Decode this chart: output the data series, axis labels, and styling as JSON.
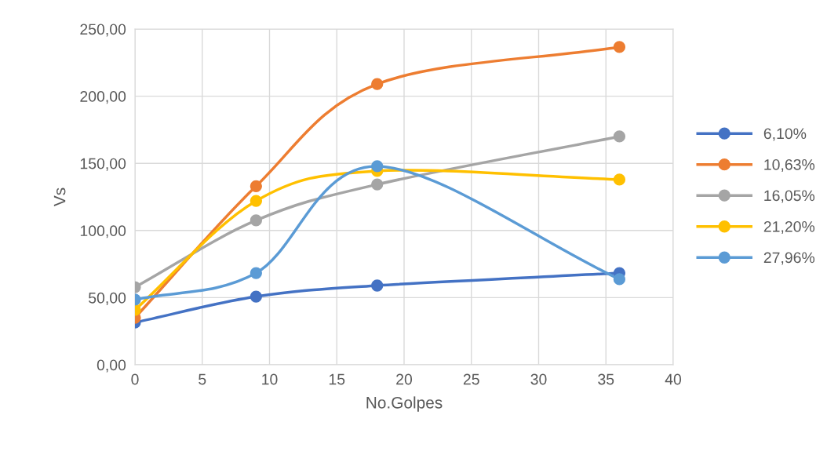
{
  "chart_data": {
    "type": "line",
    "xlabel": "No.Golpes",
    "ylabel": "Vs",
    "x": [
      0,
      9,
      18,
      36
    ],
    "series": [
      {
        "name": "6,10%",
        "color": "#4472c4",
        "values": [
          31.5,
          50.8,
          59,
          68.3
        ]
      },
      {
        "name": "10,63%",
        "color": "#ed7d31",
        "values": [
          35,
          133,
          209,
          236.6
        ]
      },
      {
        "name": "16,05%",
        "color": "#a5a5a5",
        "values": [
          57.8,
          107.5,
          134.3,
          170
        ]
      },
      {
        "name": "21,20%",
        "color": "#ffc000",
        "values": [
          40.9,
          122,
          144.3,
          137.9
        ]
      },
      {
        "name": "27,96%",
        "color": "#5b9bd5",
        "values": [
          48.5,
          68.3,
          147.8,
          63.7
        ]
      }
    ],
    "xlim": [
      0,
      40
    ],
    "xticks": [
      0,
      5,
      10,
      15,
      20,
      25,
      30,
      35,
      40
    ],
    "ylim": [
      0,
      250
    ],
    "yticks": [
      {
        "value": 0,
        "label": "0,00"
      },
      {
        "value": 50,
        "label": "50,00"
      },
      {
        "value": 100,
        "label": "100,00"
      },
      {
        "value": 150,
        "label": "150,00"
      },
      {
        "value": 200,
        "label": "200,00"
      },
      {
        "value": 250,
        "label": "250,00"
      }
    ],
    "grid": true,
    "legend": "right",
    "marker": "circle",
    "line_style": "solid"
  }
}
